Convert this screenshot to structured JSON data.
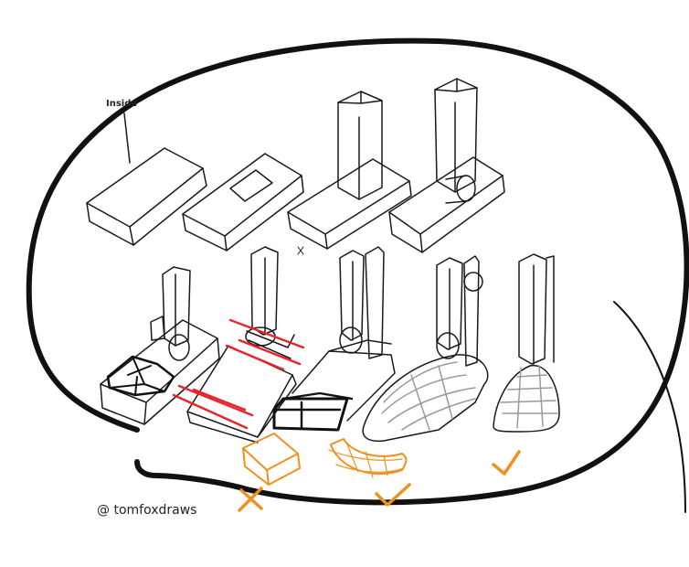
{
  "annotation": {
    "inside_label": "Inside"
  },
  "credit": {
    "text": "@ tomfoxdraws"
  },
  "colors": {
    "ink": "#1a1a1a",
    "outline": "#111111",
    "red": "#e8242a",
    "orange": "#f0901e",
    "shade": "#9a9a9a"
  },
  "marks": {
    "wrong": "cross-mark-icon",
    "right": "check-mark-icon"
  }
}
